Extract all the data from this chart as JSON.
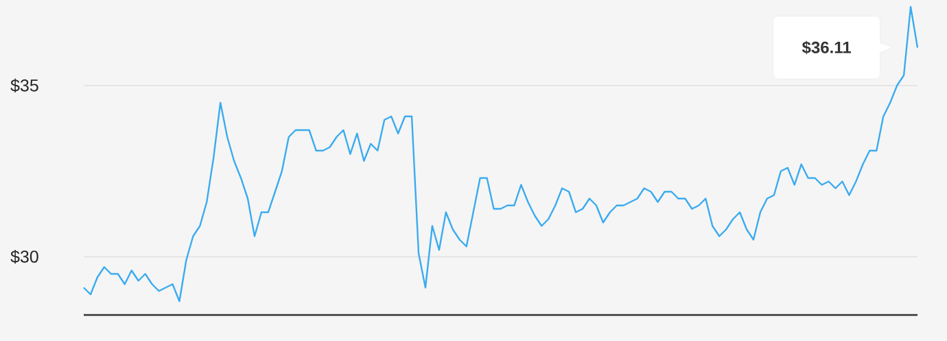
{
  "chart_data": {
    "type": "line",
    "categories": [
      null,
      null,
      null,
      null,
      null,
      null,
      null,
      null,
      null,
      null,
      null,
      null,
      null,
      null,
      null,
      null,
      null,
      null,
      null,
      null,
      null,
      null,
      null,
      null,
      null,
      null,
      null,
      null,
      null,
      null,
      null,
      null,
      null,
      null,
      null,
      null,
      null,
      null,
      null,
      null,
      null,
      null,
      null,
      null,
      null,
      null,
      null,
      null,
      null,
      null,
      null,
      null,
      null,
      null,
      null,
      null,
      null,
      null,
      null,
      null,
      null,
      null,
      null,
      null,
      null,
      null,
      null,
      null,
      null,
      null,
      null,
      null,
      null,
      null,
      null,
      null,
      null,
      null,
      null,
      null,
      null,
      null,
      null,
      null,
      null,
      null,
      null,
      null,
      null,
      null,
      null,
      null,
      null,
      null,
      null,
      null,
      null,
      null,
      null,
      null,
      null,
      null,
      null,
      null,
      null,
      null,
      null,
      null,
      null,
      null,
      null,
      null,
      null,
      null,
      null,
      null,
      null,
      null,
      null,
      null,
      null,
      null,
      null
    ],
    "values": [
      29.1,
      28.9,
      29.4,
      29.7,
      29.5,
      29.5,
      29.2,
      29.6,
      29.3,
      29.5,
      29.2,
      29.0,
      29.1,
      29.2,
      28.7,
      29.9,
      30.6,
      30.9,
      31.6,
      32.9,
      34.5,
      33.5,
      32.8,
      32.3,
      31.7,
      30.6,
      31.3,
      31.3,
      31.9,
      32.5,
      33.5,
      33.7,
      33.7,
      33.7,
      33.1,
      33.1,
      33.2,
      33.5,
      33.7,
      33.0,
      33.6,
      32.8,
      33.3,
      33.1,
      34.0,
      34.1,
      33.6,
      34.1,
      34.1,
      30.1,
      29.1,
      30.9,
      30.2,
      31.3,
      30.8,
      30.5,
      30.3,
      31.3,
      32.3,
      32.3,
      31.4,
      31.4,
      31.5,
      31.5,
      32.1,
      31.6,
      31.2,
      30.9,
      31.1,
      31.5,
      32.0,
      31.9,
      31.3,
      31.4,
      31.7,
      31.5,
      31.0,
      31.3,
      31.5,
      31.5,
      31.6,
      31.7,
      32.0,
      31.9,
      31.6,
      31.9,
      31.9,
      31.7,
      31.7,
      31.4,
      31.5,
      31.7,
      30.9,
      30.6,
      30.8,
      31.1,
      31.3,
      30.8,
      30.5,
      31.3,
      31.7,
      31.8,
      32.5,
      32.6,
      32.1,
      32.7,
      32.3,
      32.3,
      32.1,
      32.2,
      32.0,
      32.2,
      31.8,
      32.2,
      32.7,
      33.1,
      33.1,
      34.1,
      34.5,
      35.0,
      35.3,
      37.3,
      36.11
    ],
    "color": "#3aabf0",
    "ylim": [
      28.3,
      37.5
    ],
    "yticks": [
      {
        "value": 30,
        "label": "$30"
      },
      {
        "value": 35,
        "label": "$35"
      }
    ],
    "grid": "y",
    "tick_labels": "y",
    "annotations": [
      "$36.11"
    ]
  }
}
